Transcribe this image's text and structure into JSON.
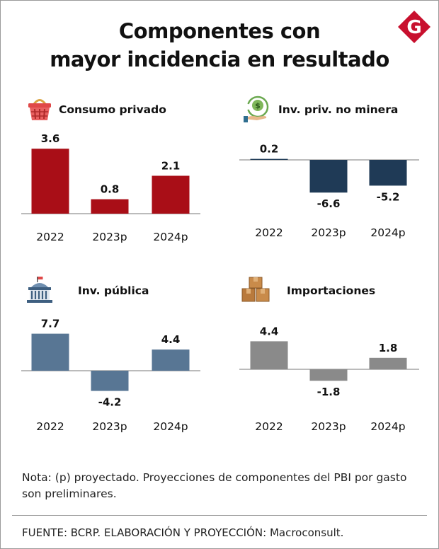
{
  "title_lines": [
    "Componentes con",
    "mayor incidencia en resultado"
  ],
  "logo_letter": "G",
  "colors": {
    "consumo": "#a90e17",
    "inv_priv": "#1f3a56",
    "inv_publica": "#587694",
    "importaciones": "#8a8a8a",
    "logo": "#c8102e"
  },
  "chart_data": [
    {
      "type": "bar",
      "title": "Consumo privado",
      "icon": "basket-icon",
      "categories": [
        "2022",
        "2023p",
        "2024p"
      ],
      "values": [
        3.6,
        0.8,
        2.1
      ],
      "value_labels": [
        "3.6",
        "0.8",
        "2.1"
      ],
      "color": "#a90e17"
    },
    {
      "type": "bar",
      "title": "Inv. priv. no minera",
      "icon": "money-plant-icon",
      "categories": [
        "2022",
        "2023p",
        "2024p"
      ],
      "values": [
        0.2,
        -6.6,
        -5.2
      ],
      "value_labels": [
        "0.2",
        "-6.6",
        "-5.2"
      ],
      "color": "#1f3a56"
    },
    {
      "type": "bar",
      "title": "Inv. pública",
      "icon": "government-building-icon",
      "categories": [
        "2022",
        "2023p",
        "2024p"
      ],
      "values": [
        7.7,
        -4.2,
        4.4
      ],
      "value_labels": [
        "7.7",
        "-4.2",
        "4.4"
      ],
      "color": "#587694"
    },
    {
      "type": "bar",
      "title": "Importaciones",
      "icon": "boxes-icon",
      "categories": [
        "2022",
        "2023p",
        "2024p"
      ],
      "values": [
        4.4,
        -1.8,
        1.8
      ],
      "value_labels": [
        "4.4",
        "-1.8",
        "1.8"
      ],
      "color": "#8a8a8a"
    }
  ],
  "note": "Nota: (p) proyectado. Proyecciones de componentes del PBI por gasto son preliminares.",
  "source": "FUENTE: BCRP. ELABORACIÓN Y PROYECCIÓN: Macroconsult."
}
